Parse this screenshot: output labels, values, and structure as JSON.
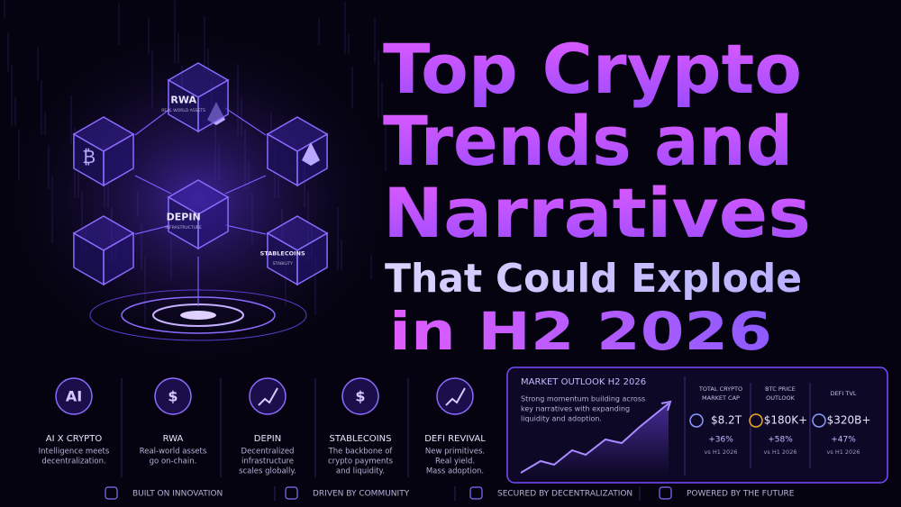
{
  "title_lines": [
    "Top Crypto",
    "Trends and",
    "Narratives"
  ],
  "subtitle_lines": [
    "That Could Explode",
    "in H2 2026"
  ],
  "cubes": [
    {
      "symbol": "₿"
    },
    {
      "label": "RWA",
      "sublabel": "REAL WORLD ASSETS"
    },
    {
      "label": "DEPIN",
      "sublabel": "INFRASTRUCTURE"
    },
    {
      "label": "STABLECOINS",
      "sublabel": "STABILITY"
    }
  ],
  "features": [
    {
      "icon_text": "AI",
      "title": "AI X CRYPTO",
      "description": [
        "Intelligence meets",
        "decentralization."
      ]
    },
    {
      "icon_text": "$",
      "title": "RWA",
      "description": [
        "Real-world assets",
        "go on-chain."
      ]
    },
    {
      "title": "DEPIN",
      "description": [
        "Decentralized",
        "infrastructure",
        "scales globally."
      ]
    },
    {
      "icon_text": "$",
      "title": "STABLECOINS",
      "description": [
        "The backbone of",
        "crypto payments",
        "and liquidity."
      ]
    },
    {
      "title": "DEFI REVIVAL",
      "description": [
        "New primitives.",
        "Real yield.",
        "Mass adoption."
      ]
    }
  ],
  "outlook": {
    "title": "MARKET OUTLOOK H2 2026",
    "description": [
      "Strong momentum building across",
      "key narratives with expanding",
      "liquidity and adoption."
    ],
    "metrics": [
      {
        "label": [
          "TOTAL CRYPTO",
          "MARKET CAP"
        ],
        "value": "$8.2T",
        "change": "+36%",
        "compare": "vs H1 2026"
      },
      {
        "label": [
          "BTC PRICE",
          "OUTLOOK"
        ],
        "value": "$180K+",
        "change": "+58%",
        "compare": "vs H1 2026"
      },
      {
        "label": [
          "DEFI TVL"
        ],
        "value": "$320B+",
        "change": "+47%",
        "compare": "vs H1 2026"
      }
    ]
  },
  "footer": [
    "BUILT ON INNOVATION",
    "DRIVEN BY COMMUNITY",
    "SECURED BY DECENTRALIZATION",
    "POWERED BY THE FUTURE"
  ]
}
